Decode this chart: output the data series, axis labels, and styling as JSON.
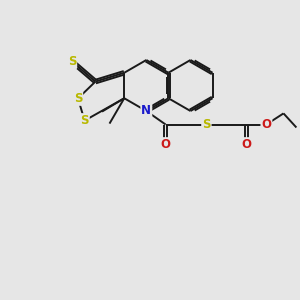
{
  "bg_color": "#e6e6e6",
  "bond_color": "#1a1a1a",
  "bond_width": 1.4,
  "dbo": 0.055,
  "atom_colors": {
    "S": "#b8b800",
    "N": "#1a1acc",
    "O": "#cc1a1a",
    "C": "#1a1a1a"
  },
  "fs": 8.5
}
